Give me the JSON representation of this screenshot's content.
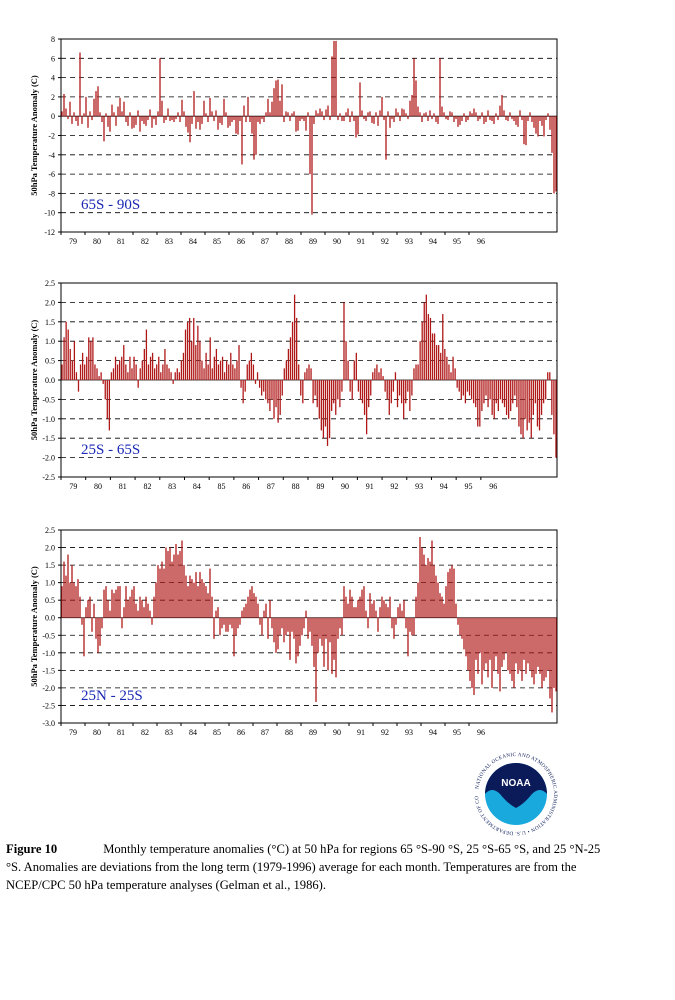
{
  "chart_data": [
    {
      "type": "bar",
      "region_label": "65S - 90S",
      "ylabel": "50hPa Temperature Anomaly (C)",
      "ylim": [
        -12,
        8
      ],
      "yticks": [
        8,
        6,
        4,
        2,
        0,
        -2,
        -4,
        -6,
        -8,
        -10,
        -12
      ],
      "xticks": [
        "79",
        "80",
        "81",
        "82",
        "83",
        "84",
        "85",
        "86",
        "87",
        "88",
        "89",
        "90",
        "91",
        "92",
        "93",
        "94",
        "95",
        "96"
      ],
      "grid": "dashed horizontal",
      "bar_color": "#b01818",
      "x_start": "1979-01",
      "values": [
        0.5,
        2.3,
        0.8,
        -0.3,
        1.5,
        -0.8,
        0.4,
        -0.5,
        -1.0,
        6.6,
        -0.8,
        0.3,
        2.0,
        -1.2,
        0.5,
        -0.4,
        1.8,
        2.6,
        3.1,
        0.4,
        -0.6,
        -2.6,
        0.3,
        -1.1,
        -1.6,
        1.2,
        0.4,
        -1.0,
        1.0,
        1.9,
        0.5,
        1.5,
        -0.6,
        -1.0,
        0.4,
        -1.3,
        -1.2,
        -0.9,
        0.6,
        -1.6,
        -0.5,
        -0.8,
        -1.0,
        -0.4,
        0.7,
        -1.2,
        -0.3,
        -0.9,
        0.5,
        6.0,
        1.6,
        -0.7,
        -0.4,
        0.8,
        -0.5,
        -0.4,
        -0.6,
        -0.3,
        0.4,
        -0.6,
        1.7,
        0.5,
        -1.1,
        -1.7,
        -2.7,
        -0.8,
        2.6,
        -1.3,
        -0.6,
        -1.4,
        -0.8,
        1.6,
        0.3,
        -0.6,
        1.9,
        0.5,
        -0.5,
        0.6,
        -1.4,
        -0.7,
        -0.9,
        1.8,
        0.4,
        -1.2,
        -1.0,
        -0.6,
        -0.4,
        -1.8,
        -1.9,
        -0.5,
        -5.0,
        1.1,
        -0.6,
        2.0,
        -0.6,
        -1.8,
        -4.5,
        -4.0,
        -0.6,
        -0.8,
        -0.3,
        -0.6,
        0.4,
        1.8,
        0.4,
        1.5,
        2.9,
        3.7,
        3.8,
        1.6,
        3.3,
        -0.6,
        0.5,
        0.4,
        -0.5,
        0.3,
        0.5,
        -1.6,
        -1.5,
        -0.5,
        -0.3,
        -0.5,
        -1.5,
        0.4,
        -6.0,
        -10.2,
        -0.8,
        0.6,
        0.3,
        0.8,
        0.5,
        -0.4,
        0.7,
        1.1,
        -0.4,
        6.2,
        7.8,
        7.8,
        -0.4,
        0.3,
        -0.5,
        -0.5,
        0.4,
        0.8,
        -0.6,
        0.5,
        -0.5,
        -2.2,
        -1.9,
        3.5,
        0.6,
        -0.3,
        -0.5,
        0.4,
        0.5,
        -0.7,
        -0.8,
        0.4,
        -1.0,
        0.6,
        2.0,
        -0.4,
        -4.5,
        0.5,
        -1.2,
        -0.3,
        -0.6,
        0.8,
        0.4,
        -0.5,
        0.8,
        0.7,
        0.3,
        -0.3,
        1.6,
        2.2,
        6.0,
        3.7,
        1.0,
        0.4,
        -0.6,
        0.3,
        0.4,
        -0.5,
        0.6,
        -0.3,
        0.3,
        -0.6,
        -0.8,
        6.0,
        1.0,
        0.4,
        -0.3,
        -0.4,
        0.5,
        0.4,
        -0.6,
        -0.3,
        -1.1,
        -0.9,
        -0.5,
        0.3,
        -0.6,
        -0.4,
        0.5,
        0.3,
        0.8,
        0.4,
        -0.5,
        -0.3,
        0.4,
        -0.8,
        -0.6,
        0.6,
        -0.4,
        -0.5,
        -0.8,
        0.3,
        -0.4,
        1.1,
        2.2,
        0.6,
        -0.4,
        -0.5,
        0.4,
        -0.3,
        -0.5,
        -0.9,
        -1.1,
        0.6,
        -0.4,
        -2.9,
        -3.0,
        -0.5,
        0.4,
        -0.6,
        -1.2,
        -1.8,
        -2.1,
        -0.5,
        -1.0,
        -2.1,
        -0.4,
        0.3,
        -1.4,
        -3.8,
        -8.0,
        -7.8
      ]
    },
    {
      "type": "bar",
      "region_label": "25S - 65S",
      "ylabel": "50hPa Temperature Anomaly (C)",
      "ylim": [
        -2.5,
        2.5
      ],
      "yticks": [
        2.5,
        2.0,
        1.5,
        1.0,
        0.5,
        0.0,
        -0.5,
        -1.0,
        -1.5,
        -2.0,
        -2.5
      ],
      "xticks": [
        "79",
        "80",
        "81",
        "82",
        "83",
        "84",
        "85",
        "86",
        "87",
        "88",
        "89",
        "90",
        "91",
        "92",
        "93",
        "94",
        "95",
        "96"
      ],
      "grid": "dashed horizontal",
      "bar_color": "#b01818",
      "x_start": "1979-01",
      "values": [
        0.4,
        1.1,
        1.5,
        1.3,
        0.8,
        0.5,
        1.0,
        0.2,
        -0.3,
        0.4,
        0.7,
        0.4,
        0.6,
        1.1,
        1.0,
        1.1,
        0.4,
        0.3,
        0.1,
        0.2,
        -0.1,
        -0.5,
        -1.0,
        -1.3,
        0.2,
        0.3,
        0.6,
        0.4,
        0.5,
        0.6,
        0.9,
        0.4,
        0.2,
        0.6,
        0.3,
        0.6,
        0.4,
        -0.2,
        0.3,
        0.5,
        0.8,
        1.3,
        0.4,
        0.6,
        0.7,
        0.3,
        0.4,
        0.6,
        0.2,
        0.4,
        0.8,
        0.4,
        0.3,
        0.2,
        -0.1,
        0.2,
        0.3,
        0.2,
        0.5,
        0.7,
        1.3,
        1.5,
        1.6,
        1.0,
        1.6,
        0.9,
        1.4,
        1.0,
        0.5,
        0.3,
        0.7,
        0.4,
        1.1,
        0.3,
        0.6,
        0.8,
        0.4,
        0.5,
        0.6,
        0.2,
        0.5,
        0.4,
        0.7,
        0.4,
        0.3,
        0.5,
        0.9,
        -0.2,
        -0.6,
        -0.3,
        0.4,
        0.5,
        0.7,
        0.4,
        -0.1,
        0.2,
        -0.2,
        -0.4,
        -0.3,
        -0.5,
        -0.6,
        -0.8,
        -0.5,
        -1.0,
        -0.7,
        -1.1,
        -0.9,
        -0.4,
        0.3,
        0.5,
        0.8,
        1.1,
        1.5,
        2.2,
        1.6,
        0.4,
        -0.4,
        -0.6,
        0.2,
        0.3,
        0.4,
        0.3,
        -0.6,
        -0.4,
        -0.7,
        -1.0,
        -1.3,
        -1.5,
        -1.2,
        -1.7,
        -1.5,
        -0.8,
        -0.6,
        -0.9,
        -0.5,
        -0.7,
        -0.3,
        2.0,
        1.0,
        0.5,
        -0.3,
        -0.5,
        0.5,
        0.7,
        -0.3,
        -0.5,
        -0.6,
        -0.9,
        -1.4,
        -0.7,
        -0.4,
        0.2,
        0.3,
        0.4,
        0.2,
        0.3,
        0.1,
        -0.3,
        -0.5,
        -0.9,
        -0.6,
        -0.3,
        0.2,
        -0.7,
        -0.4,
        -0.6,
        -1.0,
        -0.6,
        -0.3,
        -0.8,
        -0.4,
        0.3,
        0.4,
        0.4,
        1.0,
        1.5,
        2.0,
        2.2,
        1.7,
        1.6,
        1.2,
        1.2,
        0.9,
        0.9,
        0.7,
        1.7,
        0.8,
        0.6,
        0.4,
        0.2,
        0.6,
        0.3,
        -0.2,
        -0.3,
        -0.5,
        -0.4,
        -0.6,
        -0.3,
        -0.4,
        -0.5,
        -0.6,
        -0.7,
        -1.2,
        -1.2,
        -0.8,
        -0.6,
        -0.4,
        -0.7,
        -0.5,
        -0.9,
        -1.0,
        -0.6,
        -0.8,
        -0.5,
        -0.6,
        -0.7,
        -0.9,
        -1.0,
        -0.8,
        -0.6,
        -0.4,
        -0.7,
        -1.2,
        -1.4,
        -1.5,
        -1.0,
        -1.3,
        -1.1,
        -1.5,
        -0.9,
        -0.6,
        -1.2,
        -1.3,
        -0.9,
        -0.6,
        -0.5,
        0.2,
        0.2,
        -0.9,
        -1.4,
        -2.0
      ]
    },
    {
      "type": "bar",
      "region_label": "25N - 25S",
      "ylabel": "50hPa Temperature Anomaly (C)",
      "ylim": [
        -3.0,
        2.5
      ],
      "yticks": [
        2.5,
        2.0,
        1.5,
        1.0,
        0.5,
        0.0,
        -0.5,
        -1.0,
        -1.5,
        -2.0,
        -2.5,
        -3.0
      ],
      "xticks": [
        "79",
        "80",
        "81",
        "82",
        "83",
        "84",
        "85",
        "86",
        "87",
        "88",
        "89",
        "90",
        "91",
        "92",
        "93",
        "94",
        "95",
        "96"
      ],
      "grid": "dashed horizontal",
      "bar_color": "#b01818",
      "x_start": "1979-01",
      "values": [
        0.9,
        1.6,
        1.2,
        1.8,
        1.0,
        1.5,
        1.0,
        0.9,
        1.1,
        0.6,
        -0.2,
        -1.1,
        0.3,
        0.5,
        0.6,
        -0.4,
        0.4,
        -0.6,
        -1.0,
        -0.8,
        -0.3,
        0.8,
        0.9,
        0.5,
        0.2,
        0.8,
        0.7,
        0.8,
        0.9,
        0.9,
        -0.3,
        0.3,
        0.9,
        0.5,
        0.6,
        0.8,
        0.9,
        0.4,
        0.2,
        0.6,
        0.5,
        0.3,
        0.6,
        0.4,
        0.2,
        -0.2,
        0.6,
        1.0,
        1.5,
        1.4,
        1.6,
        1.4,
        2.0,
        1.9,
        2.0,
        1.6,
        1.8,
        2.1,
        1.8,
        1.9,
        2.2,
        1.5,
        1.2,
        0.9,
        1.2,
        1.1,
        1.0,
        1.3,
        0.9,
        1.3,
        1.1,
        1.0,
        0.9,
        0.7,
        1.4,
        0.6,
        -0.6,
        0.2,
        0.3,
        -0.5,
        -0.3,
        -0.2,
        -0.4,
        -0.4,
        -0.2,
        -0.3,
        -1.1,
        -0.5,
        -0.3,
        -0.2,
        0.2,
        0.3,
        0.4,
        0.6,
        0.8,
        0.9,
        0.7,
        0.6,
        0.4,
        -0.2,
        -0.5,
        0.2,
        0.4,
        -0.6,
        0.5,
        -0.3,
        -0.7,
        -1.0,
        -0.9,
        -0.5,
        -0.3,
        -0.7,
        -0.5,
        -0.4,
        -1.2,
        -0.4,
        -0.6,
        -1.3,
        -1.1,
        -0.8,
        -0.5,
        -0.3,
        0.2,
        -0.6,
        -0.4,
        -0.8,
        -1.4,
        -2.4,
        -1.0,
        -0.6,
        -0.8,
        -1.4,
        -0.6,
        -1.5,
        -0.7,
        -1.6,
        -1.2,
        -1.7,
        -0.6,
        -0.3,
        -0.5,
        0.9,
        0.6,
        0.4,
        0.8,
        0.6,
        0.3,
        0.3,
        0.5,
        0.6,
        0.8,
        0.9,
        0.2,
        -0.3,
        0.7,
        0.4,
        0.5,
        0.2,
        -0.4,
        0.3,
        0.6,
        0.5,
        0.4,
        0.3,
        0.6,
        -0.3,
        -0.6,
        -0.2,
        0.3,
        0.4,
        0.2,
        0.5,
        -0.3,
        -1.1,
        -0.4,
        -0.5,
        -0.5,
        0.6,
        1.0,
        2.3,
        2.0,
        1.8,
        1.5,
        1.7,
        1.6,
        2.2,
        1.5,
        1.2,
        1.0,
        0.7,
        0.6,
        0.4,
        0.9,
        1.3,
        1.4,
        1.5,
        1.4,
        0.4,
        -0.2,
        -0.5,
        -0.6,
        -0.9,
        -1.1,
        -1.5,
        -1.8,
        -2.0,
        -2.2,
        -1.2,
        -1.6,
        -1.0,
        -1.9,
        -1.5,
        -1.3,
        -1.7,
        -1.2,
        -2.0,
        -1.5,
        -1.1,
        -1.6,
        -2.1,
        -1.4,
        -1.2,
        -1.0,
        -1.5,
        -1.6,
        -1.8,
        -2.0,
        -1.3,
        -1.6,
        -1.5,
        -1.8,
        -1.2,
        -1.6,
        -1.3,
        -1.5,
        -1.7,
        -1.9,
        -1.6,
        -1.4,
        -1.6,
        -2.0,
        -1.8,
        -1.7,
        -1.5,
        -2.3,
        -2.7,
        -2.0,
        -2.1
      ]
    }
  ],
  "logo": {
    "text": "NOAA",
    "ring_text": "NATIONAL OCEANIC AND ATMOSPHERIC ADMINISTRATION • U.S. DEPARTMENT OF COMMERCE",
    "colors": {
      "navy": "#0b1b5a",
      "cyan": "#1aa9dc"
    }
  },
  "caption": {
    "fig_label": "Figure 10",
    "text": "Monthly temperature anomalies (°C) at 50 hPa for regions 65 °S-90 °S, 25 °S-65 °S, and 25 °N-25 °S.  Anomalies are deviations from the long term (1979-1996) average for each month.  Temperatures are from the NCEP/CPC 50 hPa temperature analyses (Gelman et al., 1986)."
  },
  "colors": {
    "bar": "#b01818",
    "region_label": "#1a28b4",
    "grid": "#000000"
  }
}
